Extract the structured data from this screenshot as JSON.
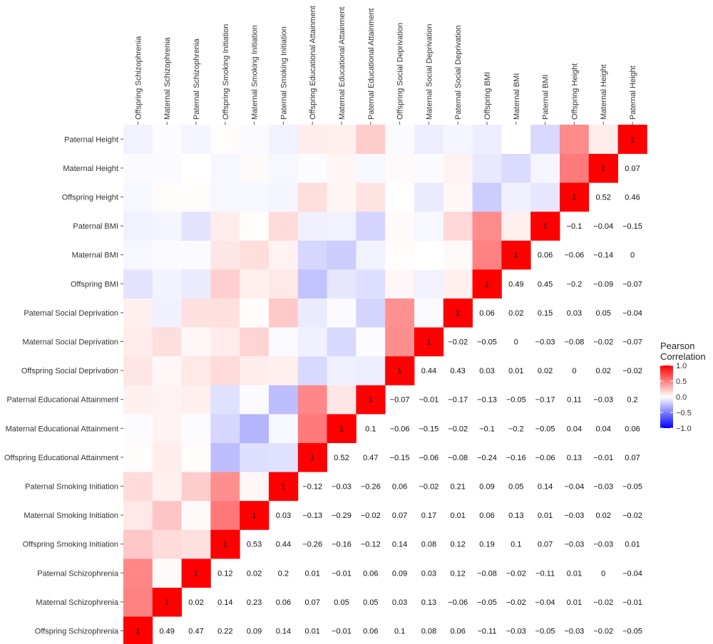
{
  "chart_data": {
    "type": "heatmap",
    "title": "",
    "legend": {
      "title_lines": [
        "Pearson",
        "Correlation"
      ],
      "ticks": [
        "1.0",
        "0.5",
        "0.0",
        "−0.5",
        "−1.0"
      ],
      "tick_values": [
        1.0,
        0.5,
        0.0,
        -0.5,
        -1.0
      ],
      "range": [
        -1,
        1
      ],
      "colors": {
        "low": "#0000ff",
        "mid": "#ffffff",
        "high": "#ff0000"
      },
      "placement": "right"
    },
    "labels": [
      "Offspring Schizophrenia",
      "Maternal Schizophrenia",
      "Paternal Schizophrenia",
      "Offspring Smoking Initiation",
      "Maternal Smoking Initiation",
      "Paternal Smoking Initiation",
      "Offspring Educational Attainment",
      "Maternal Educational Attainment",
      "Paternal Educational Attainment",
      "Offspring Social Deprivation",
      "Maternal Social Deprivation",
      "Paternal Social Deprivation",
      "Offspring BMI",
      "Maternal BMI",
      "Paternal BMI",
      "Offspring Height",
      "Maternal Height",
      "Paternal Height"
    ],
    "matrix": [
      [
        1,
        0.49,
        0.47,
        0.22,
        0.09,
        0.14,
        0.01,
        -0.01,
        0.06,
        0.1,
        0.08,
        0.06,
        -0.11,
        -0.03,
        -0.05,
        -0.03,
        -0.02,
        -0.05
      ],
      [
        0.49,
        1,
        0.02,
        0.14,
        0.23,
        0.06,
        0.07,
        0.05,
        0.05,
        0.03,
        0.13,
        -0.06,
        -0.05,
        -0.02,
        -0.04,
        0.01,
        -0.02,
        -0.01
      ],
      [
        0.47,
        0.02,
        1,
        0.12,
        0.02,
        0.2,
        0.01,
        -0.01,
        0.06,
        0.09,
        0.03,
        0.12,
        -0.08,
        -0.02,
        -0.11,
        0.01,
        0,
        -0.04
      ],
      [
        0.22,
        0.14,
        0.12,
        1,
        0.53,
        0.44,
        -0.26,
        -0.16,
        -0.12,
        0.14,
        0.08,
        0.12,
        0.19,
        0.1,
        0.07,
        -0.03,
        -0.03,
        0.01
      ],
      [
        0.09,
        0.23,
        0.02,
        0.53,
        1,
        0.03,
        -0.13,
        -0.29,
        -0.02,
        0.07,
        0.17,
        0.01,
        0.06,
        0.13,
        0.01,
        -0.03,
        0.02,
        -0.02
      ],
      [
        0.14,
        0.06,
        0.2,
        0.44,
        0.03,
        1,
        -0.12,
        -0.03,
        -0.26,
        0.06,
        -0.02,
        0.21,
        0.09,
        0.05,
        0.14,
        -0.04,
        -0.03,
        -0.05
      ],
      [
        0.01,
        0.07,
        0.01,
        -0.26,
        -0.13,
        -0.12,
        1,
        0.52,
        0.47,
        -0.15,
        -0.06,
        -0.08,
        -0.24,
        -0.16,
        -0.06,
        0.13,
        -0.01,
        0.07
      ],
      [
        -0.01,
        0.05,
        -0.01,
        -0.16,
        -0.29,
        -0.03,
        0.52,
        1,
        0.1,
        -0.06,
        -0.15,
        -0.02,
        -0.1,
        -0.2,
        -0.05,
        0.04,
        0.04,
        0.06
      ],
      [
        0.06,
        0.05,
        0.06,
        -0.12,
        -0.02,
        -0.26,
        0.47,
        0.1,
        1,
        -0.07,
        -0.01,
        -0.17,
        -0.13,
        -0.05,
        -0.17,
        0.11,
        -0.03,
        0.2
      ],
      [
        0.1,
        0.03,
        0.09,
        0.14,
        0.07,
        0.06,
        -0.15,
        -0.06,
        -0.07,
        1,
        0.44,
        0.43,
        0.03,
        0.01,
        0.02,
        0,
        0.02,
        -0.02
      ],
      [
        0.08,
        0.13,
        0.03,
        0.08,
        0.17,
        -0.02,
        -0.06,
        -0.15,
        -0.01,
        0.44,
        1,
        -0.02,
        -0.05,
        0,
        -0.03,
        -0.08,
        -0.02,
        -0.07
      ],
      [
        0.06,
        -0.06,
        0.12,
        0.12,
        0.01,
        0.21,
        -0.08,
        -0.02,
        -0.17,
        0.43,
        -0.02,
        1,
        0.06,
        0.02,
        0.15,
        0.03,
        0.05,
        -0.04
      ],
      [
        -0.11,
        -0.05,
        -0.08,
        0.19,
        0.06,
        0.09,
        -0.24,
        -0.1,
        -0.13,
        0.03,
        -0.05,
        0.06,
        1,
        0.49,
        0.45,
        -0.2,
        -0.09,
        -0.07
      ],
      [
        -0.03,
        -0.02,
        -0.02,
        0.1,
        0.13,
        0.05,
        -0.16,
        -0.2,
        -0.05,
        0.01,
        0,
        0.02,
        0.49,
        1,
        0.06,
        -0.06,
        -0.14,
        0
      ],
      [
        -0.05,
        -0.04,
        -0.11,
        0.07,
        0.01,
        0.14,
        -0.06,
        -0.05,
        -0.17,
        0.02,
        -0.03,
        0.15,
        0.45,
        0.06,
        1,
        -0.1,
        -0.04,
        -0.15
      ],
      [
        -0.03,
        0.01,
        0.01,
        -0.03,
        -0.03,
        -0.04,
        0.13,
        0.04,
        0.11,
        0,
        -0.08,
        0.03,
        -0.2,
        -0.06,
        -0.1,
        1,
        0.52,
        0.46
      ],
      [
        -0.02,
        -0.02,
        0,
        -0.03,
        0.02,
        -0.03,
        -0.01,
        0.04,
        -0.03,
        0.02,
        -0.02,
        0.05,
        -0.09,
        -0.14,
        -0.04,
        0.52,
        1,
        0.07
      ],
      [
        -0.05,
        -0.01,
        -0.04,
        0.01,
        -0.02,
        -0.05,
        0.07,
        0.06,
        0.2,
        -0.02,
        -0.07,
        -0.04,
        -0.07,
        0,
        -0.15,
        0.46,
        0.07,
        1
      ]
    ]
  }
}
